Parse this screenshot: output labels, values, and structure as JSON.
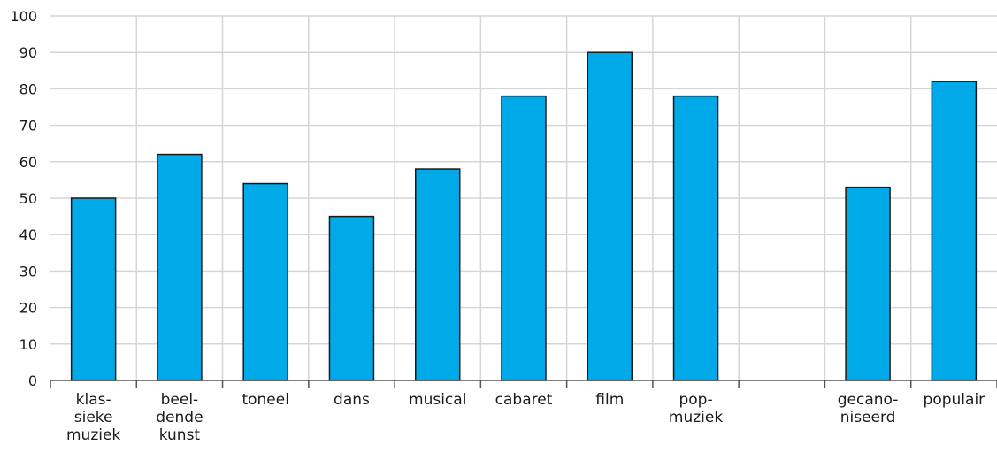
{
  "chart_data": {
    "type": "bar",
    "categories": [
      [
        "klas-",
        "sieke",
        "muziek"
      ],
      [
        "beel-",
        "dende",
        "kunst"
      ],
      [
        "toneel"
      ],
      [
        "dans"
      ],
      [
        "musical"
      ],
      [
        "cabaret"
      ],
      [
        "film"
      ],
      [
        "pop-",
        "muziek"
      ],
      [
        ""
      ],
      [
        "gecano-",
        "niseerd"
      ],
      [
        "populair"
      ]
    ],
    "values": [
      50,
      62,
      54,
      45,
      58,
      78,
      90,
      78,
      null,
      53,
      82
    ],
    "ylim": [
      0,
      100
    ],
    "yticks": [
      0,
      10,
      20,
      30,
      40,
      50,
      60,
      70,
      80,
      90,
      100
    ],
    "grid": true,
    "title": "",
    "xlabel": "",
    "ylabel": "",
    "colors": {
      "bar": "#00A9E8",
      "bar_outline": "#1a1a1a",
      "grid": "#d6d6d6",
      "axis": "#555555"
    }
  }
}
